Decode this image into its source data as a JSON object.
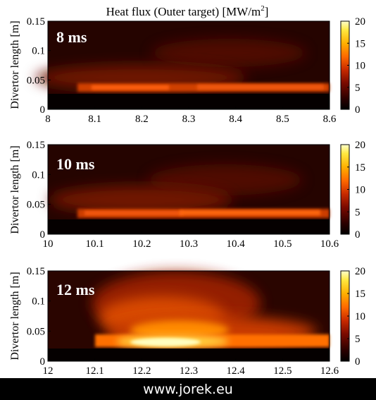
{
  "title_main": "Heat flux (Outer target) [MW/m",
  "title_sup": "2",
  "title_end": "]",
  "footer": "www.jorek.eu",
  "colors": {
    "cmap": [
      "#000000",
      "#2a0000",
      "#7a0a00",
      "#c82a00",
      "#ff6a00",
      "#ffb000",
      "#ffe840",
      "#ffffcc"
    ]
  },
  "chart_data": [
    {
      "type": "heatmap",
      "label": "8 ms",
      "ylabel": "Divertor length [m]",
      "xlim": [
        8,
        8.6
      ],
      "ylim": [
        0,
        0.15
      ],
      "xticks": [
        "8",
        "8.1",
        "8.2",
        "8.3",
        "8.4",
        "8.5",
        "8.6"
      ],
      "yticks": [
        "0",
        "0.05",
        "0.1",
        "0.15"
      ],
      "colorbar": {
        "min": 0,
        "max": 20,
        "ticks": [
          "0",
          "5",
          "10",
          "15",
          "20"
        ]
      },
      "features": [
        {
          "x": [
            8.05,
            8.6
          ],
          "y": [
            0.032,
            0.038
          ],
          "value": 12
        },
        {
          "x": [
            8.05,
            8.6
          ],
          "y": [
            0.04,
            0.06
          ],
          "value": 4
        },
        {
          "x": [
            8.25,
            8.45
          ],
          "y": [
            0.07,
            0.1
          ],
          "value": 3
        }
      ]
    },
    {
      "type": "heatmap",
      "label": "10 ms",
      "ylabel": "Divertor length [m]",
      "xlim": [
        10,
        10.6
      ],
      "ylim": [
        0,
        0.15
      ],
      "xticks": [
        "10",
        "10.1",
        "10.2",
        "10.3",
        "10.4",
        "10.5",
        "10.6"
      ],
      "yticks": [
        "0",
        "0.05",
        "0.1",
        "0.15"
      ],
      "colorbar": {
        "min": 0,
        "max": 20,
        "ticks": [
          "0",
          "5",
          "10",
          "15",
          "20"
        ]
      },
      "features": [
        {
          "x": [
            10.07,
            10.6
          ],
          "y": [
            0.031,
            0.037
          ],
          "value": 11
        },
        {
          "x": [
            10.05,
            10.6
          ],
          "y": [
            0.04,
            0.065
          ],
          "value": 4
        },
        {
          "x": [
            10.25,
            10.45
          ],
          "y": [
            0.065,
            0.1
          ],
          "value": 3
        }
      ]
    },
    {
      "type": "heatmap",
      "label": "12 ms",
      "ylabel": "Divertor length [m]",
      "xlim": [
        12,
        12.6
      ],
      "ylim": [
        0,
        0.15
      ],
      "xticks": [
        "12",
        "12.1",
        "12.2",
        "12.3",
        "12.4",
        "12.5",
        "12.6"
      ],
      "yticks": [
        "0",
        "0.05",
        "0.1",
        "0.15"
      ],
      "colorbar": {
        "min": 0,
        "max": 20,
        "ticks": [
          "0",
          "5",
          "10",
          "15",
          "20"
        ]
      },
      "features": [
        {
          "x": [
            12.12,
            12.5
          ],
          "y": [
            0.022,
            0.035
          ],
          "value": 20
        },
        {
          "x": [
            12.1,
            12.6
          ],
          "y": [
            0.03,
            0.038
          ],
          "value": 12
        },
        {
          "x": [
            12.12,
            12.4
          ],
          "y": [
            0.04,
            0.07
          ],
          "value": 10
        },
        {
          "x": [
            12.15,
            12.35
          ],
          "y": [
            0.07,
            0.12
          ],
          "value": 6
        }
      ]
    }
  ]
}
